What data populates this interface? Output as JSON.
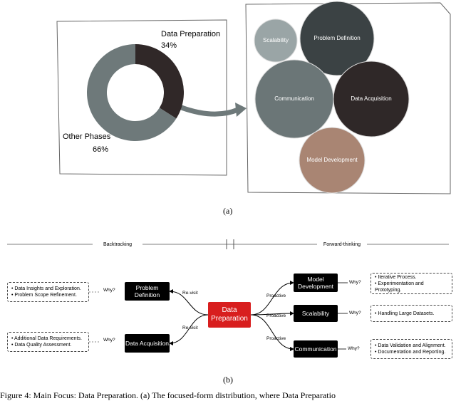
{
  "chart_data": {
    "type": "donut",
    "categories": [
      "Data Preparation",
      "Other Phases"
    ],
    "values": [
      34,
      66
    ],
    "value_labels": [
      "34%",
      "66%"
    ],
    "colors": [
      "#302828",
      "#6e797a"
    ]
  },
  "bubbles": [
    {
      "label": "Scalability"
    },
    {
      "label": "Problem Definition"
    },
    {
      "label": "Communication"
    },
    {
      "label": "Data Acquisition"
    },
    {
      "label": "Model Development"
    }
  ],
  "captions": [
    "(a)",
    "(b)"
  ],
  "timeline": {
    "left": "Backtracking",
    "right": "Forward-thinking"
  },
  "diagram": {
    "center": "Data Preparation",
    "nodes": [
      {
        "label": "Problem Definition",
        "edge": "Re-visit",
        "why": "Why?",
        "notes": [
          "• Data Insights and Exploration.",
          "• Problem Scope Refinement."
        ]
      },
      {
        "label": "Data Acquisition",
        "edge": "Re-visit",
        "why": "Why?",
        "notes": [
          "• Additional Data Requirements.",
          "• Data Quality Assessment."
        ]
      },
      {
        "label": "Model Development",
        "edge": "Proactive",
        "why": "Why?",
        "notes": [
          "• Iterative Process.",
          "• Experimentation and Prototyping."
        ]
      },
      {
        "label": "Scalability",
        "edge": "Proactive",
        "why": "Why?",
        "notes": [
          "• Handling Large Datasets."
        ]
      },
      {
        "label": "Communication",
        "edge": "Proactive",
        "why": "Why?",
        "notes": [
          "• Data Validation and Alignment.",
          "• Documentation and Reporting."
        ]
      }
    ]
  },
  "figure_caption": "Figure 4: Main Focus: Data Preparation. (a) The focused-form distribution, where Data Preparatio"
}
